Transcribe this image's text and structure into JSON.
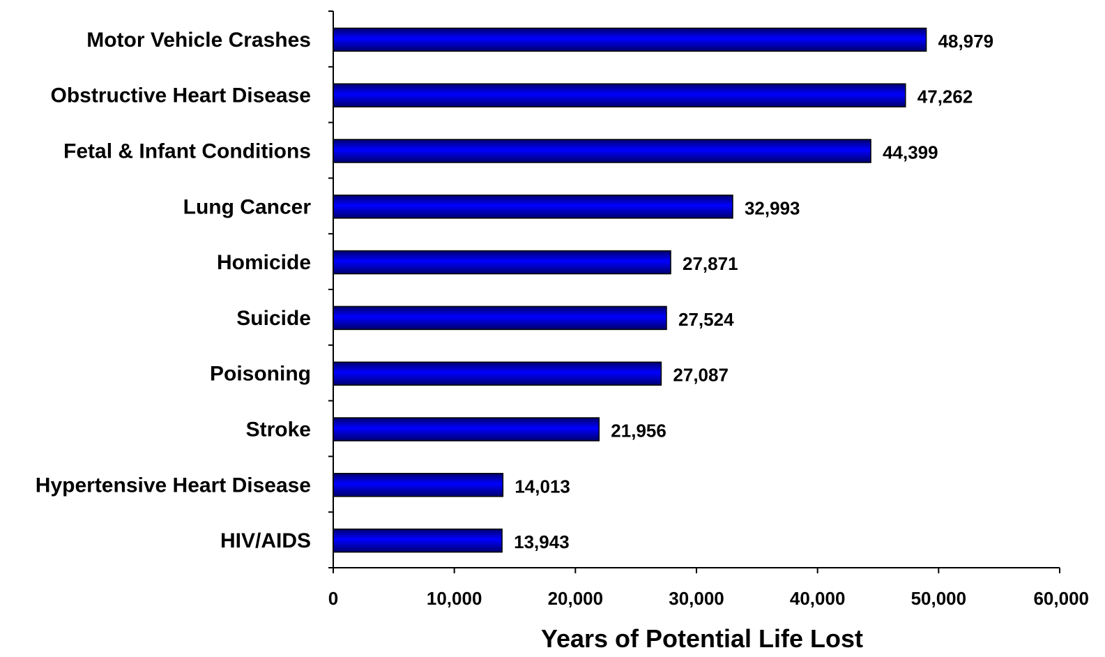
{
  "chart_data": {
    "type": "bar",
    "orientation": "horizontal",
    "categories": [
      "Motor Vehicle Crashes",
      "Obstructive Heart Disease",
      "Fetal & Infant Conditions",
      "Lung Cancer",
      "Homicide",
      "Suicide",
      "Poisoning",
      "Stroke",
      "Hypertensive Heart Disease",
      "HIV/AIDS"
    ],
    "values": [
      48979,
      47262,
      44399,
      32993,
      27871,
      27524,
      27087,
      21956,
      14013,
      13943
    ],
    "value_labels": [
      "48,979",
      "47,262",
      "44,399",
      "32,993",
      "27,871",
      "27,524",
      "27,087",
      "21,956",
      "14,013",
      "13,943"
    ],
    "xlabel": "Years of Potential Life Lost",
    "xlim": [
      0,
      60000
    ],
    "x_ticks": [
      0,
      10000,
      20000,
      30000,
      40000,
      50000,
      60000
    ],
    "x_tick_labels": [
      "0",
      "10,000",
      "20,000",
      "30,000",
      "40,000",
      "50,000",
      "60,000"
    ],
    "bar_color": "#0000ff",
    "bar_color_dark": "#00006e",
    "grid": false,
    "legend": "none"
  }
}
